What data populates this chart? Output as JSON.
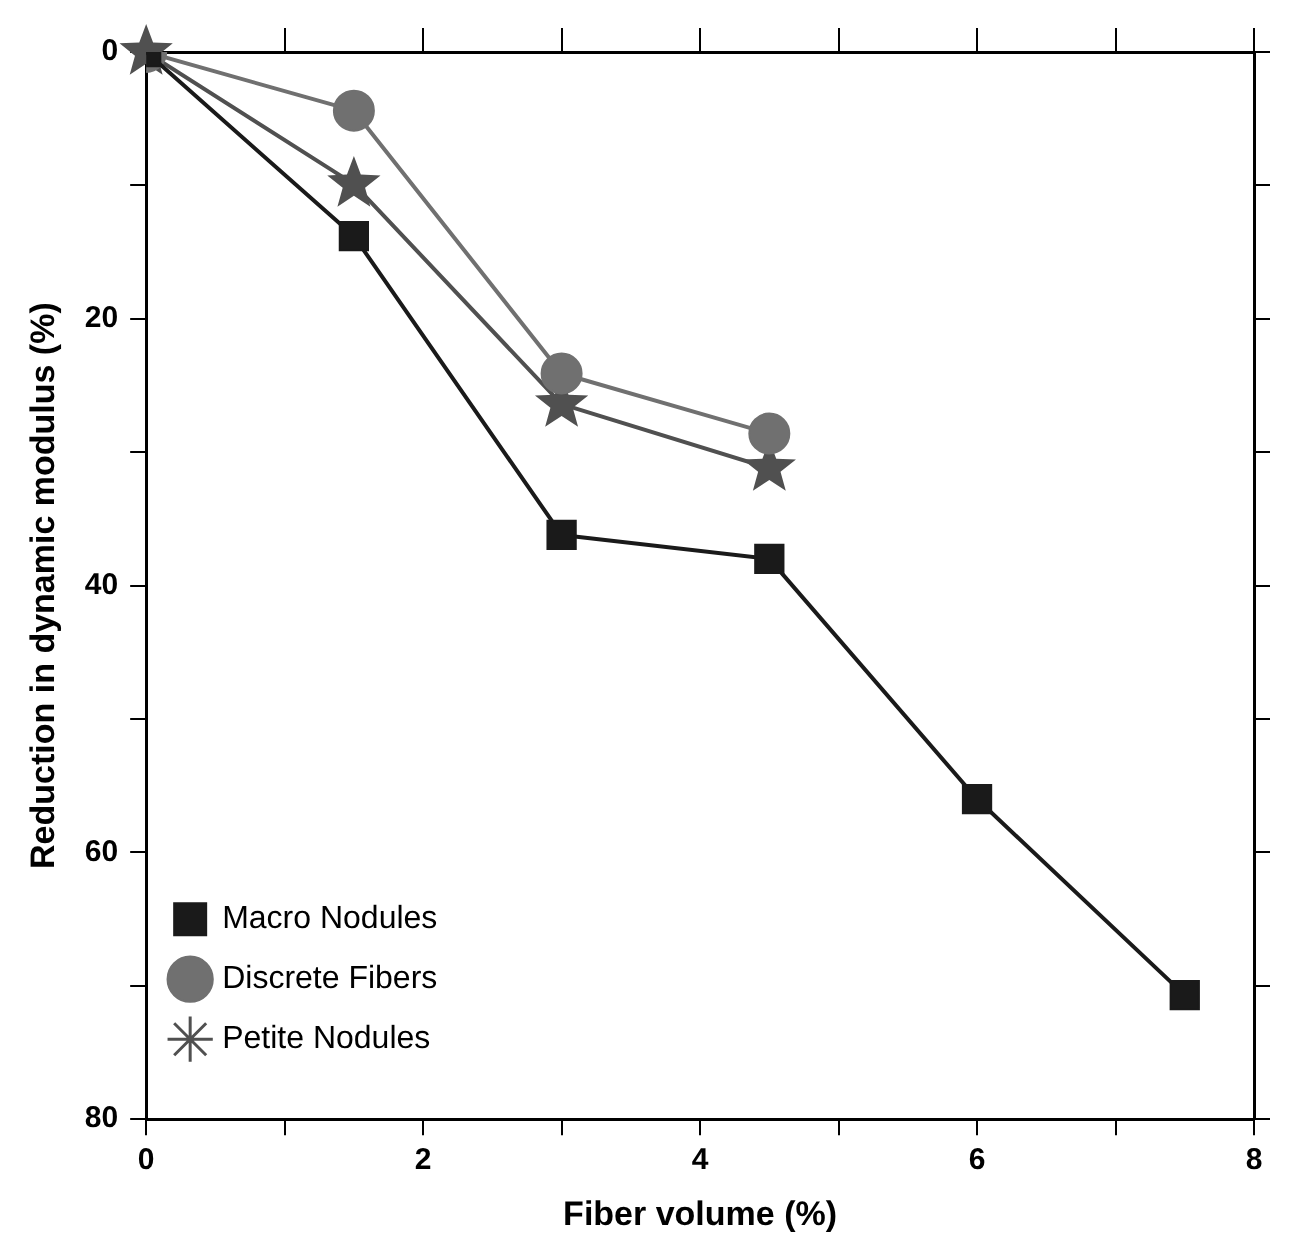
{
  "chart_data": {
    "type": "line",
    "xlabel": "Fiber volume (%)",
    "ylabel": "Reduction in dynamic modulus (%)",
    "xlim": [
      0,
      8
    ],
    "xticks": [
      0,
      {
        "value": 1,
        "label": null
      },
      2,
      {
        "value": 3,
        "label": null
      },
      4,
      {
        "value": 5,
        "label": null
      },
      6,
      {
        "value": 7,
        "label": null
      },
      8
    ],
    "ylim": [
      80,
      0
    ],
    "yticks": [
      0,
      {
        "value": 10,
        "label": null
      },
      20,
      {
        "value": 30,
        "label": null
      },
      40,
      {
        "value": 50,
        "label": null
      },
      60,
      {
        "value": 70,
        "label": null
      },
      80
    ],
    "grid": false,
    "legend": "bottom left",
    "line_style": "solid",
    "series": [
      {
        "name": "Macro Nodules",
        "color": "#1a1a1a",
        "marker": "square",
        "x": [
          0,
          1.5,
          3,
          4.5,
          6,
          7.5
        ],
        "values": [
          0,
          13.8,
          36.2,
          38.0,
          56.0,
          70.7
        ]
      },
      {
        "name": "Discrete Fibers",
        "color": "#707070",
        "marker": "circle",
        "x": [
          0,
          1.5,
          3,
          4.5
        ],
        "values": [
          0,
          4.4,
          24.1,
          28.6
        ]
      },
      {
        "name": "Petite Nodules",
        "color": "#505050",
        "marker": "star",
        "x": [
          0,
          1.5,
          3,
          4.5
        ],
        "values": [
          0,
          9.9,
          26.4,
          31.2
        ]
      }
    ]
  }
}
